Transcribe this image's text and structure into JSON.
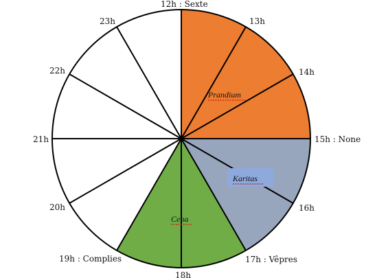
{
  "diagram": {
    "hours": [
      {
        "label": "12h : Sexte",
        "hour": 12
      },
      {
        "label": "13h",
        "hour": 13
      },
      {
        "label": "14h",
        "hour": 14
      },
      {
        "label": "15h : None",
        "hour": 15
      },
      {
        "label": "16h",
        "hour": 16
      },
      {
        "label": "17h : Vêpres",
        "hour": 17
      },
      {
        "label": "18h",
        "hour": 18
      },
      {
        "label": "19h : Complies",
        "hour": 19
      },
      {
        "label": "20h",
        "hour": 20
      },
      {
        "label": "21h",
        "hour": 21
      },
      {
        "label": "22h",
        "hour": 22
      },
      {
        "label": "23h",
        "hour": 23
      }
    ],
    "segments": [
      {
        "name": "prandium",
        "label": "Prandium",
        "start_hour": 12,
        "end_hour": 15,
        "color": "#ED7D31"
      },
      {
        "name": "karitas",
        "label": "Karitas",
        "start_hour": 15,
        "end_hour": 17,
        "color": "#97A6BC",
        "label_box_color": "#8EA9DB"
      },
      {
        "name": "cena",
        "label": "Cena",
        "start_hour": 17,
        "end_hour": 19,
        "color": "#70AD47"
      }
    ]
  }
}
